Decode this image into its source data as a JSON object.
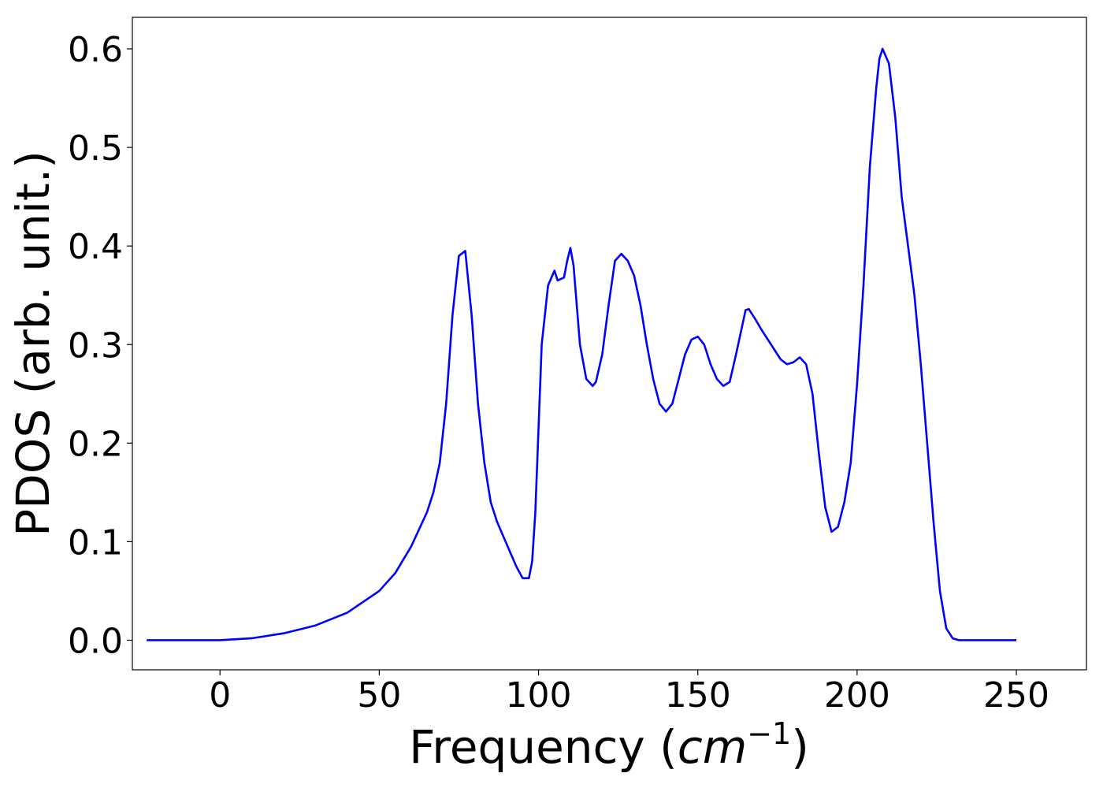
{
  "chart_data": {
    "type": "line",
    "title": "",
    "xlabel": "Frequency (",
    "xlabel_math": {
      "base": "cm",
      "exponent": "−1"
    },
    "xlabel_suffix": ")",
    "ylabel": "PDOS (arb. unit.)",
    "xlim": [
      -27.5,
      272
    ],
    "ylim": [
      -0.03,
      0.632
    ],
    "xticks": [
      0,
      50,
      100,
      150,
      200,
      250
    ],
    "yticks": [
      0.0,
      0.1,
      0.2,
      0.3,
      0.4,
      0.5,
      0.6
    ],
    "xtick_labels": [
      "0",
      "50",
      "100",
      "150",
      "200",
      "250"
    ],
    "ytick_labels": [
      "0.0",
      "0.1",
      "0.2",
      "0.3",
      "0.4",
      "0.5",
      "0.6"
    ],
    "grid": false,
    "legend": false,
    "series": [
      {
        "color": "#0000ff",
        "x": [
          -23,
          0,
          10,
          20,
          30,
          40,
          50,
          55,
          60,
          65,
          67,
          69,
          71,
          73,
          75,
          77,
          79,
          81,
          83,
          85,
          87,
          89,
          91,
          93,
          95,
          97,
          98,
          99,
          101,
          103,
          105,
          106,
          108,
          109,
          110,
          111,
          113,
          115,
          117,
          118,
          120,
          122,
          124,
          126,
          128,
          130,
          132,
          134,
          136,
          138,
          140,
          142,
          144,
          146,
          148,
          150,
          152,
          154,
          156,
          158,
          160,
          162,
          164,
          165,
          166,
          168,
          170,
          172,
          174,
          176,
          178,
          180,
          182,
          184,
          186,
          188,
          190,
          192,
          194,
          196,
          198,
          200,
          202,
          204,
          206,
          207,
          208,
          210,
          212,
          214,
          216,
          218,
          220,
          222,
          224,
          226,
          228,
          230,
          231,
          232,
          234,
          236,
          238,
          240,
          245,
          250
        ],
        "y": [
          0.0,
          0.0,
          0.002,
          0.007,
          0.015,
          0.028,
          0.05,
          0.068,
          0.095,
          0.13,
          0.15,
          0.18,
          0.24,
          0.33,
          0.39,
          0.395,
          0.33,
          0.24,
          0.18,
          0.14,
          0.12,
          0.105,
          0.09,
          0.075,
          0.063,
          0.063,
          0.08,
          0.13,
          0.3,
          0.36,
          0.375,
          0.365,
          0.368,
          0.385,
          0.398,
          0.38,
          0.3,
          0.265,
          0.258,
          0.262,
          0.29,
          0.34,
          0.385,
          0.392,
          0.385,
          0.37,
          0.34,
          0.3,
          0.265,
          0.24,
          0.232,
          0.24,
          0.265,
          0.29,
          0.305,
          0.308,
          0.3,
          0.28,
          0.265,
          0.258,
          0.262,
          0.29,
          0.32,
          0.335,
          0.336,
          0.326,
          0.315,
          0.305,
          0.295,
          0.285,
          0.28,
          0.282,
          0.287,
          0.28,
          0.25,
          0.19,
          0.135,
          0.11,
          0.115,
          0.14,
          0.18,
          0.26,
          0.36,
          0.48,
          0.56,
          0.59,
          0.6,
          0.585,
          0.53,
          0.45,
          0.4,
          0.35,
          0.28,
          0.2,
          0.12,
          0.05,
          0.012,
          0.002,
          0.001,
          0.0,
          0.0,
          0.0,
          0.0,
          0.0,
          0.0,
          0.0
        ]
      }
    ]
  }
}
